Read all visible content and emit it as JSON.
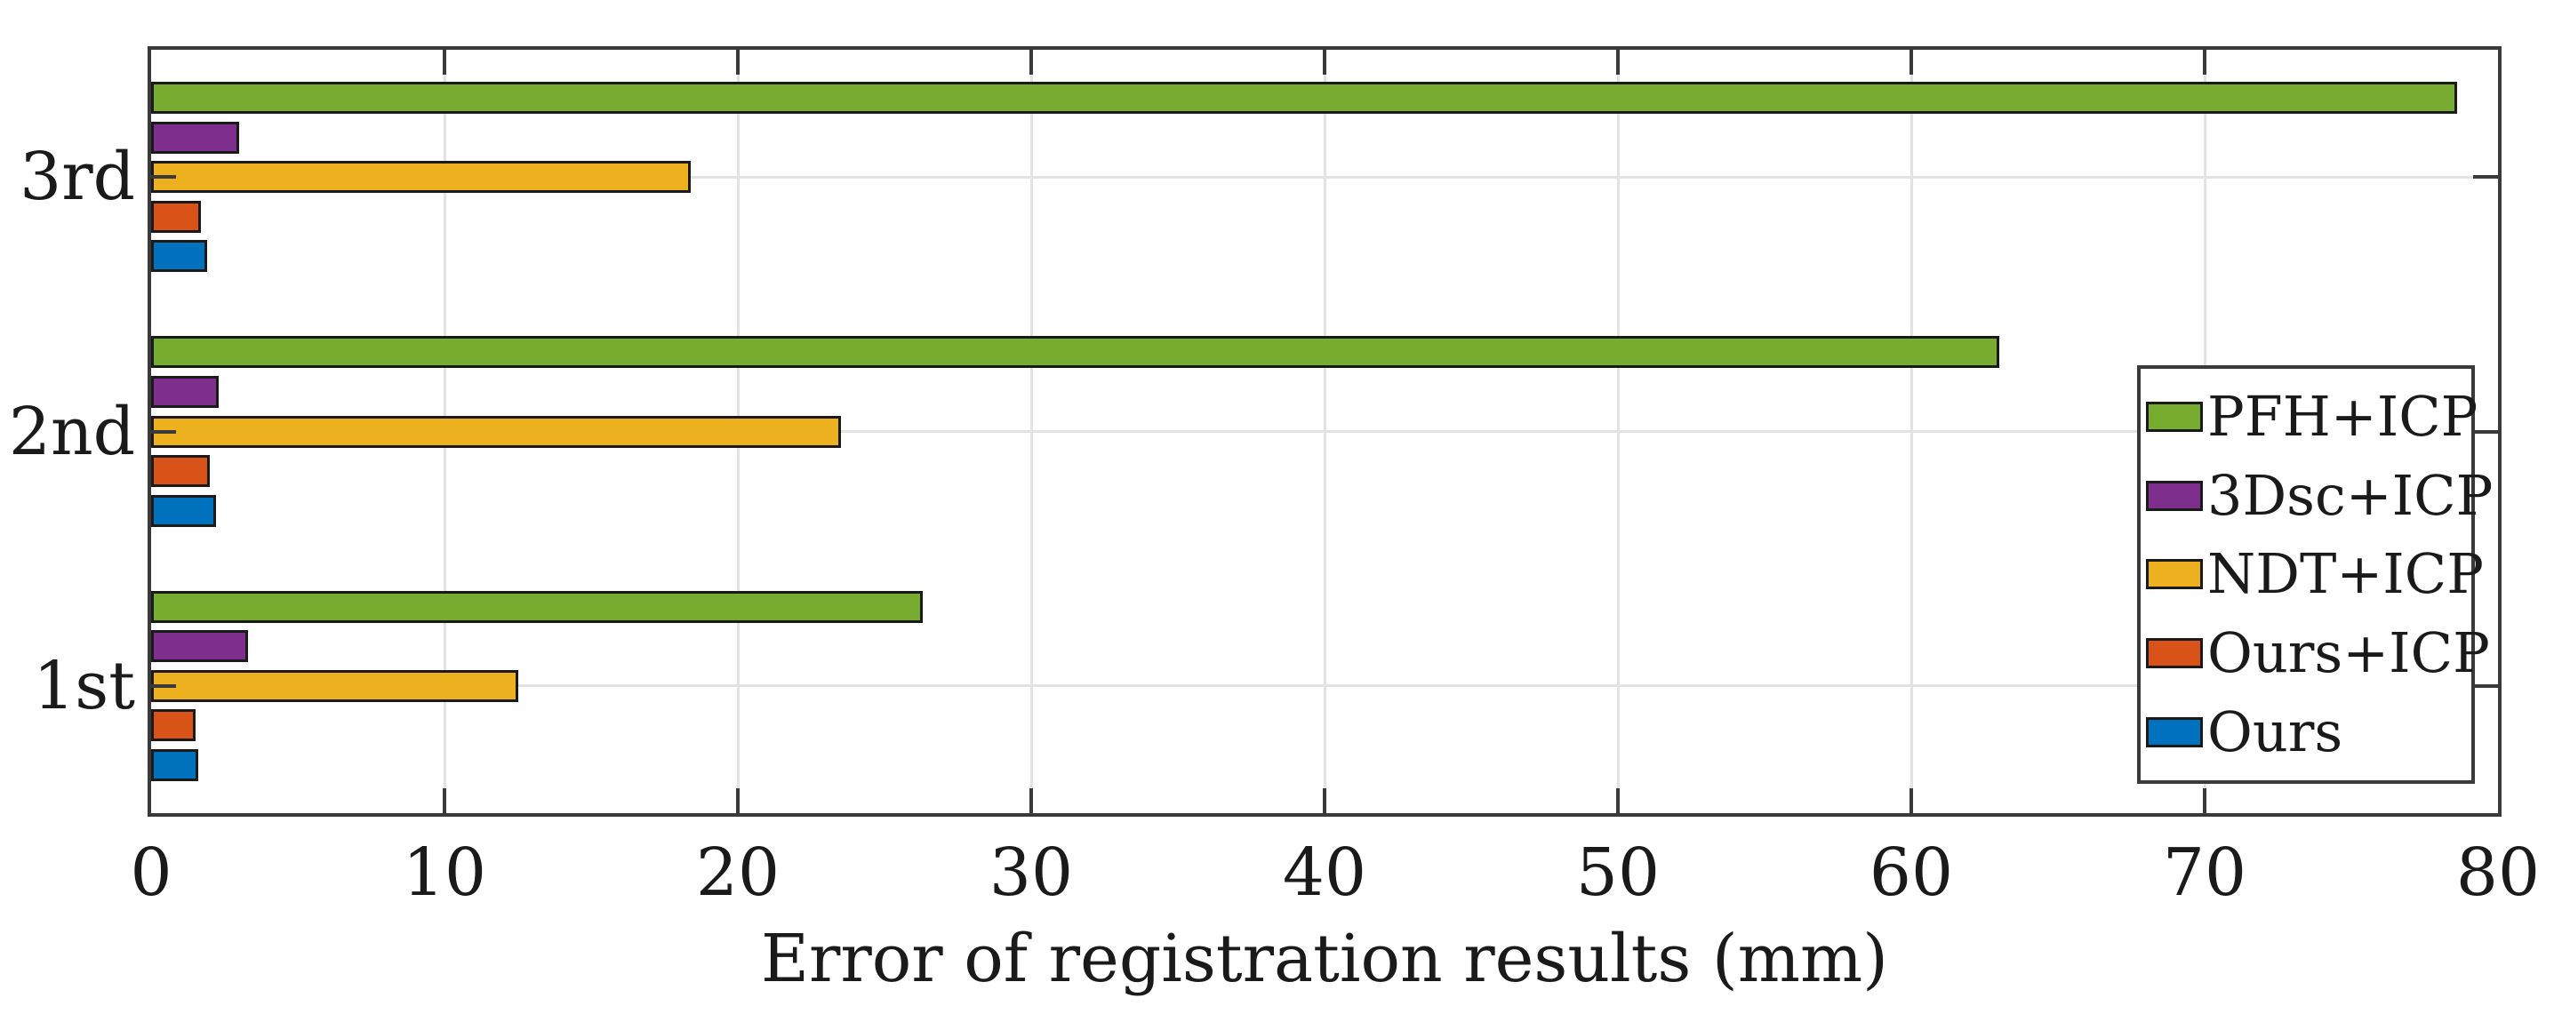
{
  "chart_data": {
    "type": "bar",
    "orientation": "horizontal",
    "title": "",
    "xlabel": "Error of registration results (mm)",
    "ylabel": "",
    "categories": [
      "3rd",
      "2nd",
      "1st"
    ],
    "series": [
      {
        "name": "PFH+ICP",
        "color": "#77AC30",
        "values": [
          78.6,
          63.0,
          26.3
        ]
      },
      {
        "name": "3Dsc+ICP",
        "color": "#7E2F8E",
        "values": [
          3.0,
          2.3,
          3.3
        ]
      },
      {
        "name": "NDT+ICP",
        "color": "#EDB120",
        "values": [
          18.4,
          23.5,
          12.5
        ]
      },
      {
        "name": "Ours+ICP",
        "color": "#D95319",
        "values": [
          1.7,
          2.0,
          1.5
        ]
      },
      {
        "name": "Ours",
        "color": "#0072BD",
        "values": [
          1.9,
          2.2,
          1.6
        ]
      }
    ],
    "xlim": [
      0,
      80
    ],
    "xticks": [
      0,
      10,
      20,
      30,
      40,
      50,
      60,
      70,
      80
    ],
    "grid": true,
    "legend": {
      "position": "inside-right",
      "entries": [
        "PFH+ICP",
        "3Dsc+ICP",
        "NDT+ICP",
        "Ours+ICP",
        "Ours"
      ]
    },
    "axis_color": "#3A3A3A",
    "grid_color": "#E3E3E3",
    "bar_edge_color": "#1A1A1A",
    "text_color": "#1A1A1A"
  }
}
